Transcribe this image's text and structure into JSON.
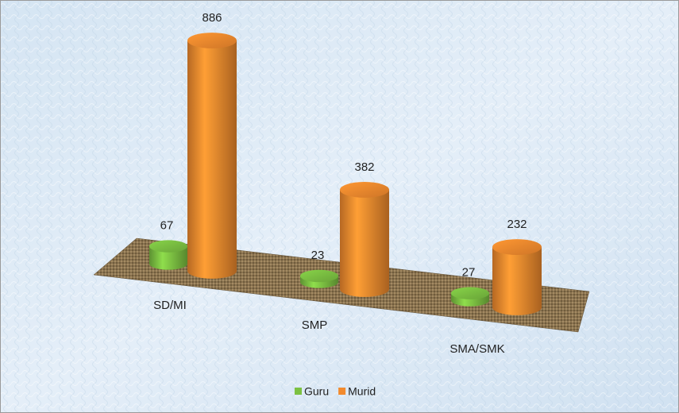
{
  "chart_data": {
    "type": "bar3d",
    "categories": [
      "SD/MI",
      "SMP",
      "SMA/SMK"
    ],
    "series": [
      {
        "name": "Guru",
        "color": "#7cc142",
        "values": [
          67,
          23,
          27
        ]
      },
      {
        "name": "Murid",
        "color": "#f28a2e",
        "values": [
          886,
          382,
          232
        ]
      }
    ],
    "legend": "bottom"
  }
}
